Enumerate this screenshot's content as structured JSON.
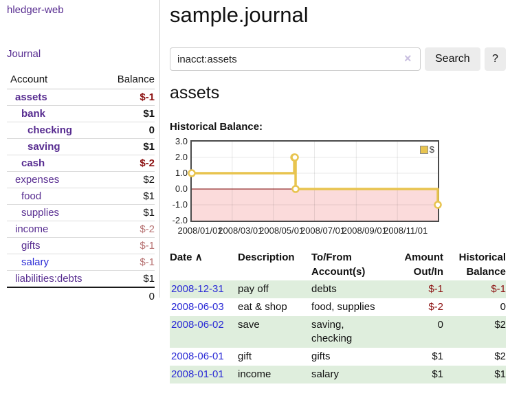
{
  "sidebar": {
    "brand": "hledger-web",
    "journal_link": "Journal",
    "accounts": {
      "headers": [
        "Account",
        "Balance"
      ],
      "rows": [
        {
          "account": "assets",
          "depth": 0,
          "bold": true,
          "link_color": "purple",
          "balance": "$-1",
          "balance_style": "neg-strong"
        },
        {
          "account": "bank",
          "depth": 1,
          "bold": true,
          "link_color": "purple",
          "balance": "$1",
          "balance_style": "pos"
        },
        {
          "account": "checking",
          "depth": 2,
          "bold": true,
          "link_color": "purple",
          "balance": "0",
          "balance_style": "pos"
        },
        {
          "account": "saving",
          "depth": 2,
          "bold": true,
          "link_color": "purple",
          "balance": "$1",
          "balance_style": "pos"
        },
        {
          "account": "cash",
          "depth": 1,
          "bold": true,
          "link_color": "purple",
          "balance": "$-2",
          "balance_style": "neg-strong"
        },
        {
          "account": "expenses",
          "depth": 0,
          "bold": false,
          "link_color": "purple",
          "balance": "$2",
          "balance_style": "pos"
        },
        {
          "account": "food",
          "depth": 1,
          "bold": false,
          "link_color": "purple",
          "balance": "$1",
          "balance_style": "pos"
        },
        {
          "account": "supplies",
          "depth": 1,
          "bold": false,
          "link_color": "purple",
          "balance": "$1",
          "balance_style": "pos"
        },
        {
          "account": "income",
          "depth": 0,
          "bold": false,
          "link_color": "purple",
          "balance": "$-2",
          "balance_style": "neg-soft"
        },
        {
          "account": "gifts",
          "depth": 1,
          "bold": false,
          "link_color": "purple",
          "balance": "$-1",
          "balance_style": "neg-soft"
        },
        {
          "account": "salary",
          "depth": 1,
          "bold": false,
          "link_color": "blue",
          "balance": "$-1",
          "balance_style": "neg-soft"
        },
        {
          "account": "liabilities:debts",
          "depth": 0,
          "bold": false,
          "link_color": "purple",
          "balance": "$1",
          "balance_style": "pos"
        }
      ],
      "total": "0"
    }
  },
  "header": {
    "title": "sample.journal"
  },
  "search": {
    "query": "inacct:assets",
    "clear_icon": "×",
    "button_label": "Search",
    "help_label": "?"
  },
  "account_page": {
    "heading": "assets",
    "chart_label": "Historical Balance:"
  },
  "chart_data": {
    "type": "line",
    "step": "after",
    "title": "Historical Balance:",
    "series": [
      {
        "name": "$",
        "color": "#e8c44f",
        "points": [
          {
            "date": "2008-01-01",
            "value": 1
          },
          {
            "date": "2008-06-01",
            "value": 2
          },
          {
            "date": "2008-06-02",
            "value": 2
          },
          {
            "date": "2008-06-03",
            "value": 0
          },
          {
            "date": "2008-12-31",
            "value": -1
          }
        ]
      }
    ],
    "ylim": [
      -2,
      3
    ],
    "y_ticks": [
      "3.0",
      "2.0",
      "1.0",
      "0.0",
      "-1.0",
      "-2.0"
    ],
    "y_tick_values": [
      3,
      2,
      1,
      0,
      -1,
      -2
    ],
    "x_range": [
      "2008-01-01",
      "2008-12-31"
    ],
    "x_ticks": [
      "2008/01/01",
      "2008/03/01",
      "2008/05/01",
      "2008/07/01",
      "2008/09/01",
      "2008/11/01"
    ],
    "grid": true,
    "legend": {
      "label": "$",
      "position": "top-right"
    },
    "negative_region_color": "#fbdbdb",
    "zero_line_color": "#7a0000"
  },
  "register": {
    "headers": [
      "Date",
      "Description",
      "To/From Account(s)",
      "Amount Out/In",
      "Historical Balance"
    ],
    "sort_icon": "∧",
    "rows": [
      {
        "date": "2008-12-31",
        "description": "pay off",
        "accounts": "debts",
        "amount": "$-1",
        "amount_neg": true,
        "balance": "$-1",
        "balance_neg": true
      },
      {
        "date": "2008-06-03",
        "description": "eat & shop",
        "accounts": "food, supplies",
        "amount": "$-2",
        "amount_neg": true,
        "balance": "0",
        "balance_neg": false
      },
      {
        "date": "2008-06-02",
        "description": "save",
        "accounts": "saving, checking",
        "amount": "0",
        "amount_neg": false,
        "balance": "$2",
        "balance_neg": false
      },
      {
        "date": "2008-06-01",
        "description": "gift",
        "accounts": "gifts",
        "amount": "$1",
        "amount_neg": false,
        "balance": "$2",
        "balance_neg": false
      },
      {
        "date": "2008-01-01",
        "description": "income",
        "accounts": "salary",
        "amount": "$1",
        "amount_neg": false,
        "balance": "$1",
        "balance_neg": false
      }
    ]
  },
  "colors": {
    "link_purple": "#572c90",
    "link_blue": "#2b2bd6",
    "negative_strong": "#8c1111",
    "negative_soft": "#b77272",
    "row_green": "#dfeedd",
    "chart_gold": "#e8c44f",
    "chart_negative_fill": "#fbdbdb",
    "chart_zero_line": "#7a0000",
    "button_bg": "#ececec"
  }
}
